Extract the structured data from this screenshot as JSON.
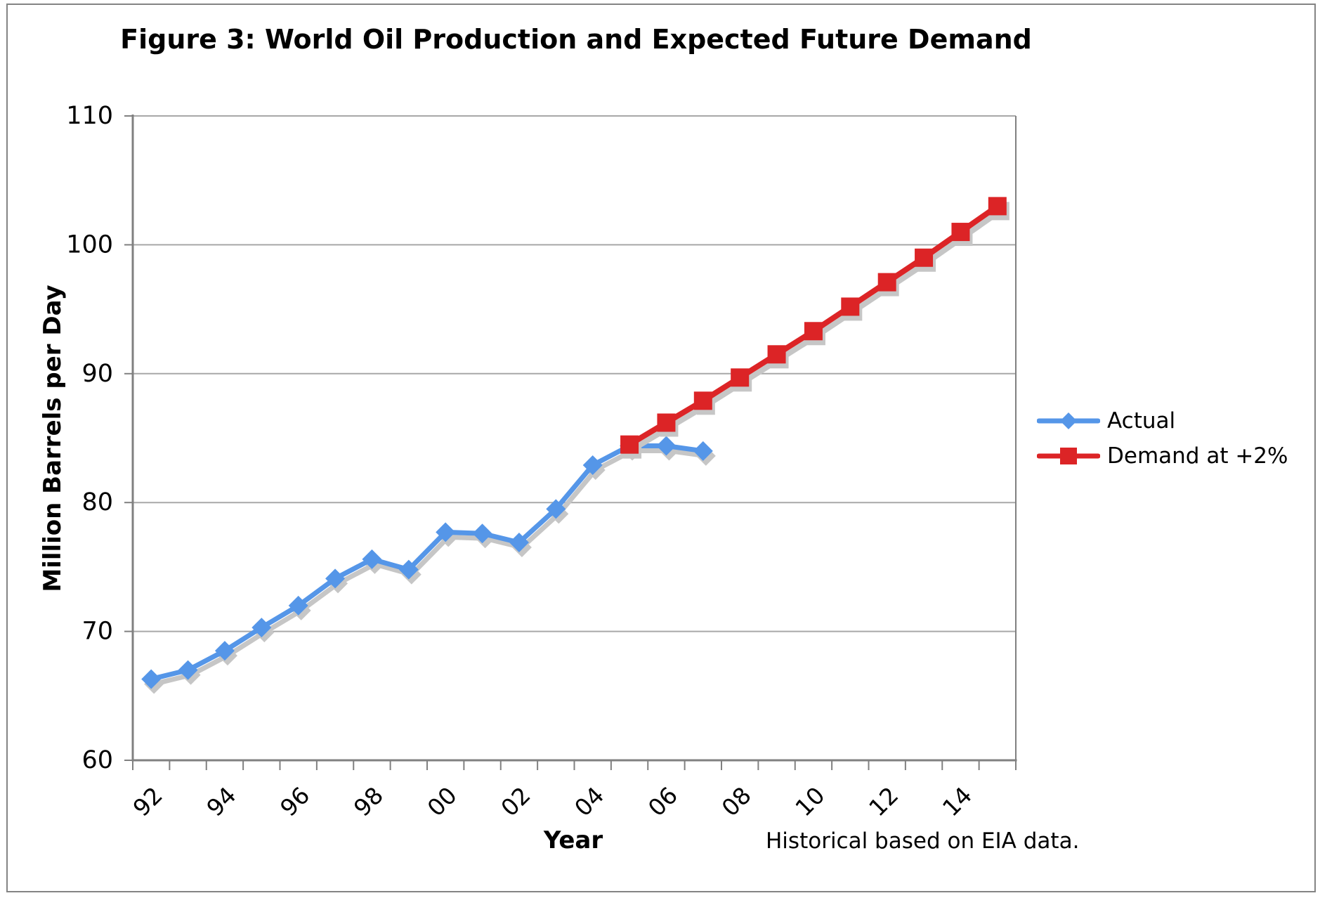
{
  "figure": {
    "title": "Figure 3: World Oil Production and Expected Future Demand",
    "note": "Historical based on EIA data."
  },
  "chart_data": {
    "type": "line",
    "title": "Figure 3: World Oil Production and Expected Future Demand",
    "xlabel": "Year",
    "ylabel": "Million Barrels per Day",
    "ylim": [
      60,
      110
    ],
    "ytick_step": 10,
    "ytick_labels": [
      "60",
      "70",
      "80",
      "90",
      "100",
      "110"
    ],
    "grid": "horizontal",
    "legend_position": "right",
    "annotation": "Historical based on EIA data.",
    "x_years": [
      1992,
      1993,
      1994,
      1995,
      1996,
      1997,
      1998,
      1999,
      2000,
      2001,
      2002,
      2003,
      2004,
      2005,
      2006,
      2007,
      2008,
      2009,
      2010,
      2011,
      2012,
      2013,
      2014,
      2015
    ],
    "xtick_labels": [
      "92",
      "94",
      "96",
      "98",
      "00",
      "02",
      "04",
      "06",
      "08",
      "10",
      "12",
      "14"
    ],
    "series": [
      {
        "name": "Actual",
        "marker": "diamond",
        "color": "#5596E8",
        "start_year": 1992,
        "values": [
          66.3,
          67.0,
          68.5,
          70.3,
          72.0,
          74.1,
          75.6,
          74.8,
          77.7,
          77.6,
          76.9,
          79.5,
          82.9,
          84.4,
          84.4,
          84.0
        ]
      },
      {
        "name": "Demand at +2%",
        "marker": "square",
        "color": "#DC2426",
        "start_year": 2005,
        "values": [
          84.5,
          86.2,
          87.9,
          89.7,
          91.5,
          93.3,
          95.2,
          97.1,
          99.0,
          101.0,
          103.0
        ]
      }
    ]
  }
}
